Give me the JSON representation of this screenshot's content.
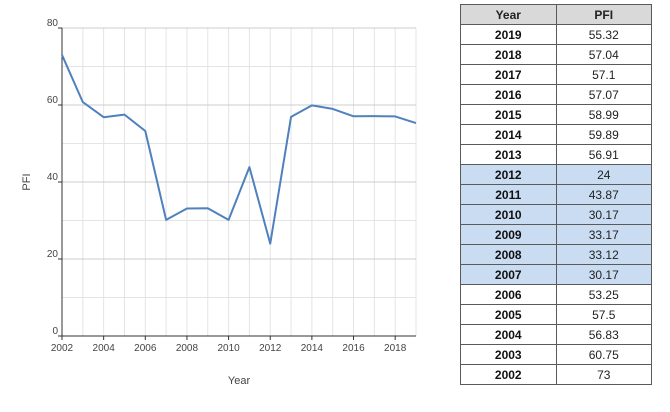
{
  "chart_data": {
    "type": "line",
    "title": "",
    "xlabel": "Year",
    "ylabel": "PFI",
    "xlim": [
      2002,
      2019
    ],
    "ylim": [
      0,
      80
    ],
    "x_ticks": [
      "2002",
      "2004",
      "2006",
      "2008",
      "2010",
      "2012",
      "2014",
      "2016",
      "2018"
    ],
    "y_ticks": [
      "0",
      "20",
      "40",
      "60",
      "80"
    ],
    "grid": true,
    "line_color": "#4f81bd",
    "series": [
      {
        "x": [
          2002,
          2003,
          2004,
          2005,
          2006,
          2007,
          2008,
          2009,
          2010,
          2011,
          2012,
          2013,
          2014,
          2015,
          2016,
          2017,
          2018,
          2019
        ],
        "values": [
          73,
          60.75,
          56.83,
          57.5,
          53.25,
          30.17,
          33.12,
          33.17,
          30.17,
          43.87,
          24,
          56.91,
          59.89,
          58.99,
          57.07,
          57.1,
          57.04,
          55.32
        ]
      }
    ]
  },
  "table": {
    "headers": [
      "Year",
      "PFI"
    ],
    "highlight_color": "#c9dcf2",
    "rows": [
      {
        "year": "2019",
        "pfi": "55.32",
        "highlighted": false
      },
      {
        "year": "2018",
        "pfi": "57.04",
        "highlighted": false
      },
      {
        "year": "2017",
        "pfi": "57.1",
        "highlighted": false
      },
      {
        "year": "2016",
        "pfi": "57.07",
        "highlighted": false
      },
      {
        "year": "2015",
        "pfi": "58.99",
        "highlighted": false
      },
      {
        "year": "2014",
        "pfi": "59.89",
        "highlighted": false
      },
      {
        "year": "2013",
        "pfi": "56.91",
        "highlighted": false
      },
      {
        "year": "2012",
        "pfi": "24",
        "highlighted": true
      },
      {
        "year": "2011",
        "pfi": "43.87",
        "highlighted": true
      },
      {
        "year": "2010",
        "pfi": "30.17",
        "highlighted": true
      },
      {
        "year": "2009",
        "pfi": "33.17",
        "highlighted": true
      },
      {
        "year": "2008",
        "pfi": "33.12",
        "highlighted": true
      },
      {
        "year": "2007",
        "pfi": "30.17",
        "highlighted": true
      },
      {
        "year": "2006",
        "pfi": "53.25",
        "highlighted": false
      },
      {
        "year": "2005",
        "pfi": "57.5",
        "highlighted": false
      },
      {
        "year": "2004",
        "pfi": "56.83",
        "highlighted": false
      },
      {
        "year": "2003",
        "pfi": "60.75",
        "highlighted": false
      },
      {
        "year": "2002",
        "pfi": "73",
        "highlighted": false
      }
    ]
  }
}
